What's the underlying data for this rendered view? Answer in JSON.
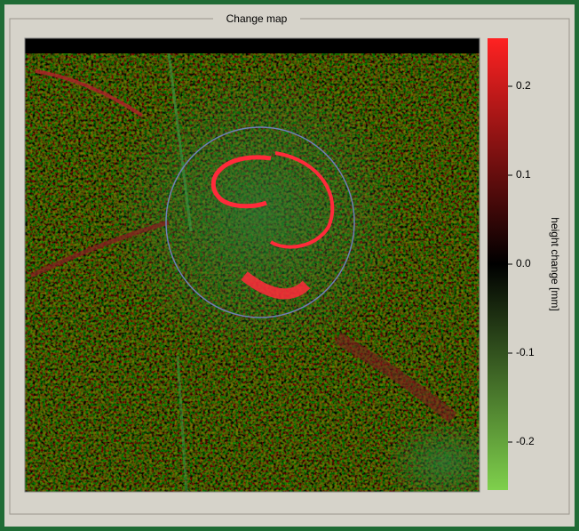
{
  "window": {
    "title": "Change map"
  },
  "colorbar": {
    "label": "height change [mm]",
    "lim": [
      -0.25,
      0.25
    ],
    "ticks": [
      0.2,
      0.1,
      {
        "value": 0,
        "label": "0.0"
      },
      -0.1,
      -0.2
    ]
  }
}
